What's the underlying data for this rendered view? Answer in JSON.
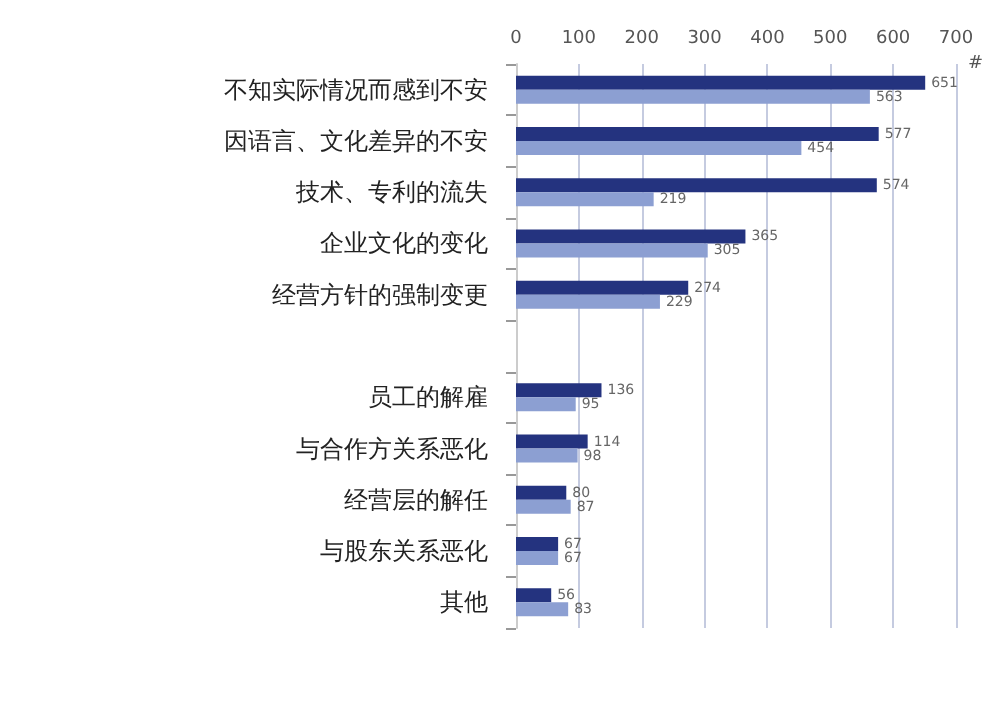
{
  "chart_data": {
    "type": "bar",
    "orientation": "horizontal",
    "xlabel": "#",
    "categories": [
      "不知实际情况而感到不安",
      "因语言、文化差异的不安",
      "技术、专利的流失",
      "企业文化的变化",
      "经营方针的强制变更",
      null,
      "员工的解雇",
      "与合作方关系恶化",
      "经营层的解任",
      "与股东关系恶化",
      "其他"
    ],
    "series": [
      {
        "color": "#24337f",
        "values": [
          651,
          577,
          574,
          365,
          274,
          null,
          136,
          114,
          80,
          67,
          56
        ]
      },
      {
        "color": "#8c9fd2",
        "values": [
          563,
          454,
          219,
          305,
          229,
          null,
          95,
          98,
          87,
          67,
          83
        ]
      }
    ],
    "xlim": [
      0,
      700
    ],
    "xticks": [
      0,
      100,
      200,
      300,
      400,
      500,
      600,
      700
    ],
    "grid": "x",
    "data_labels": true
  }
}
